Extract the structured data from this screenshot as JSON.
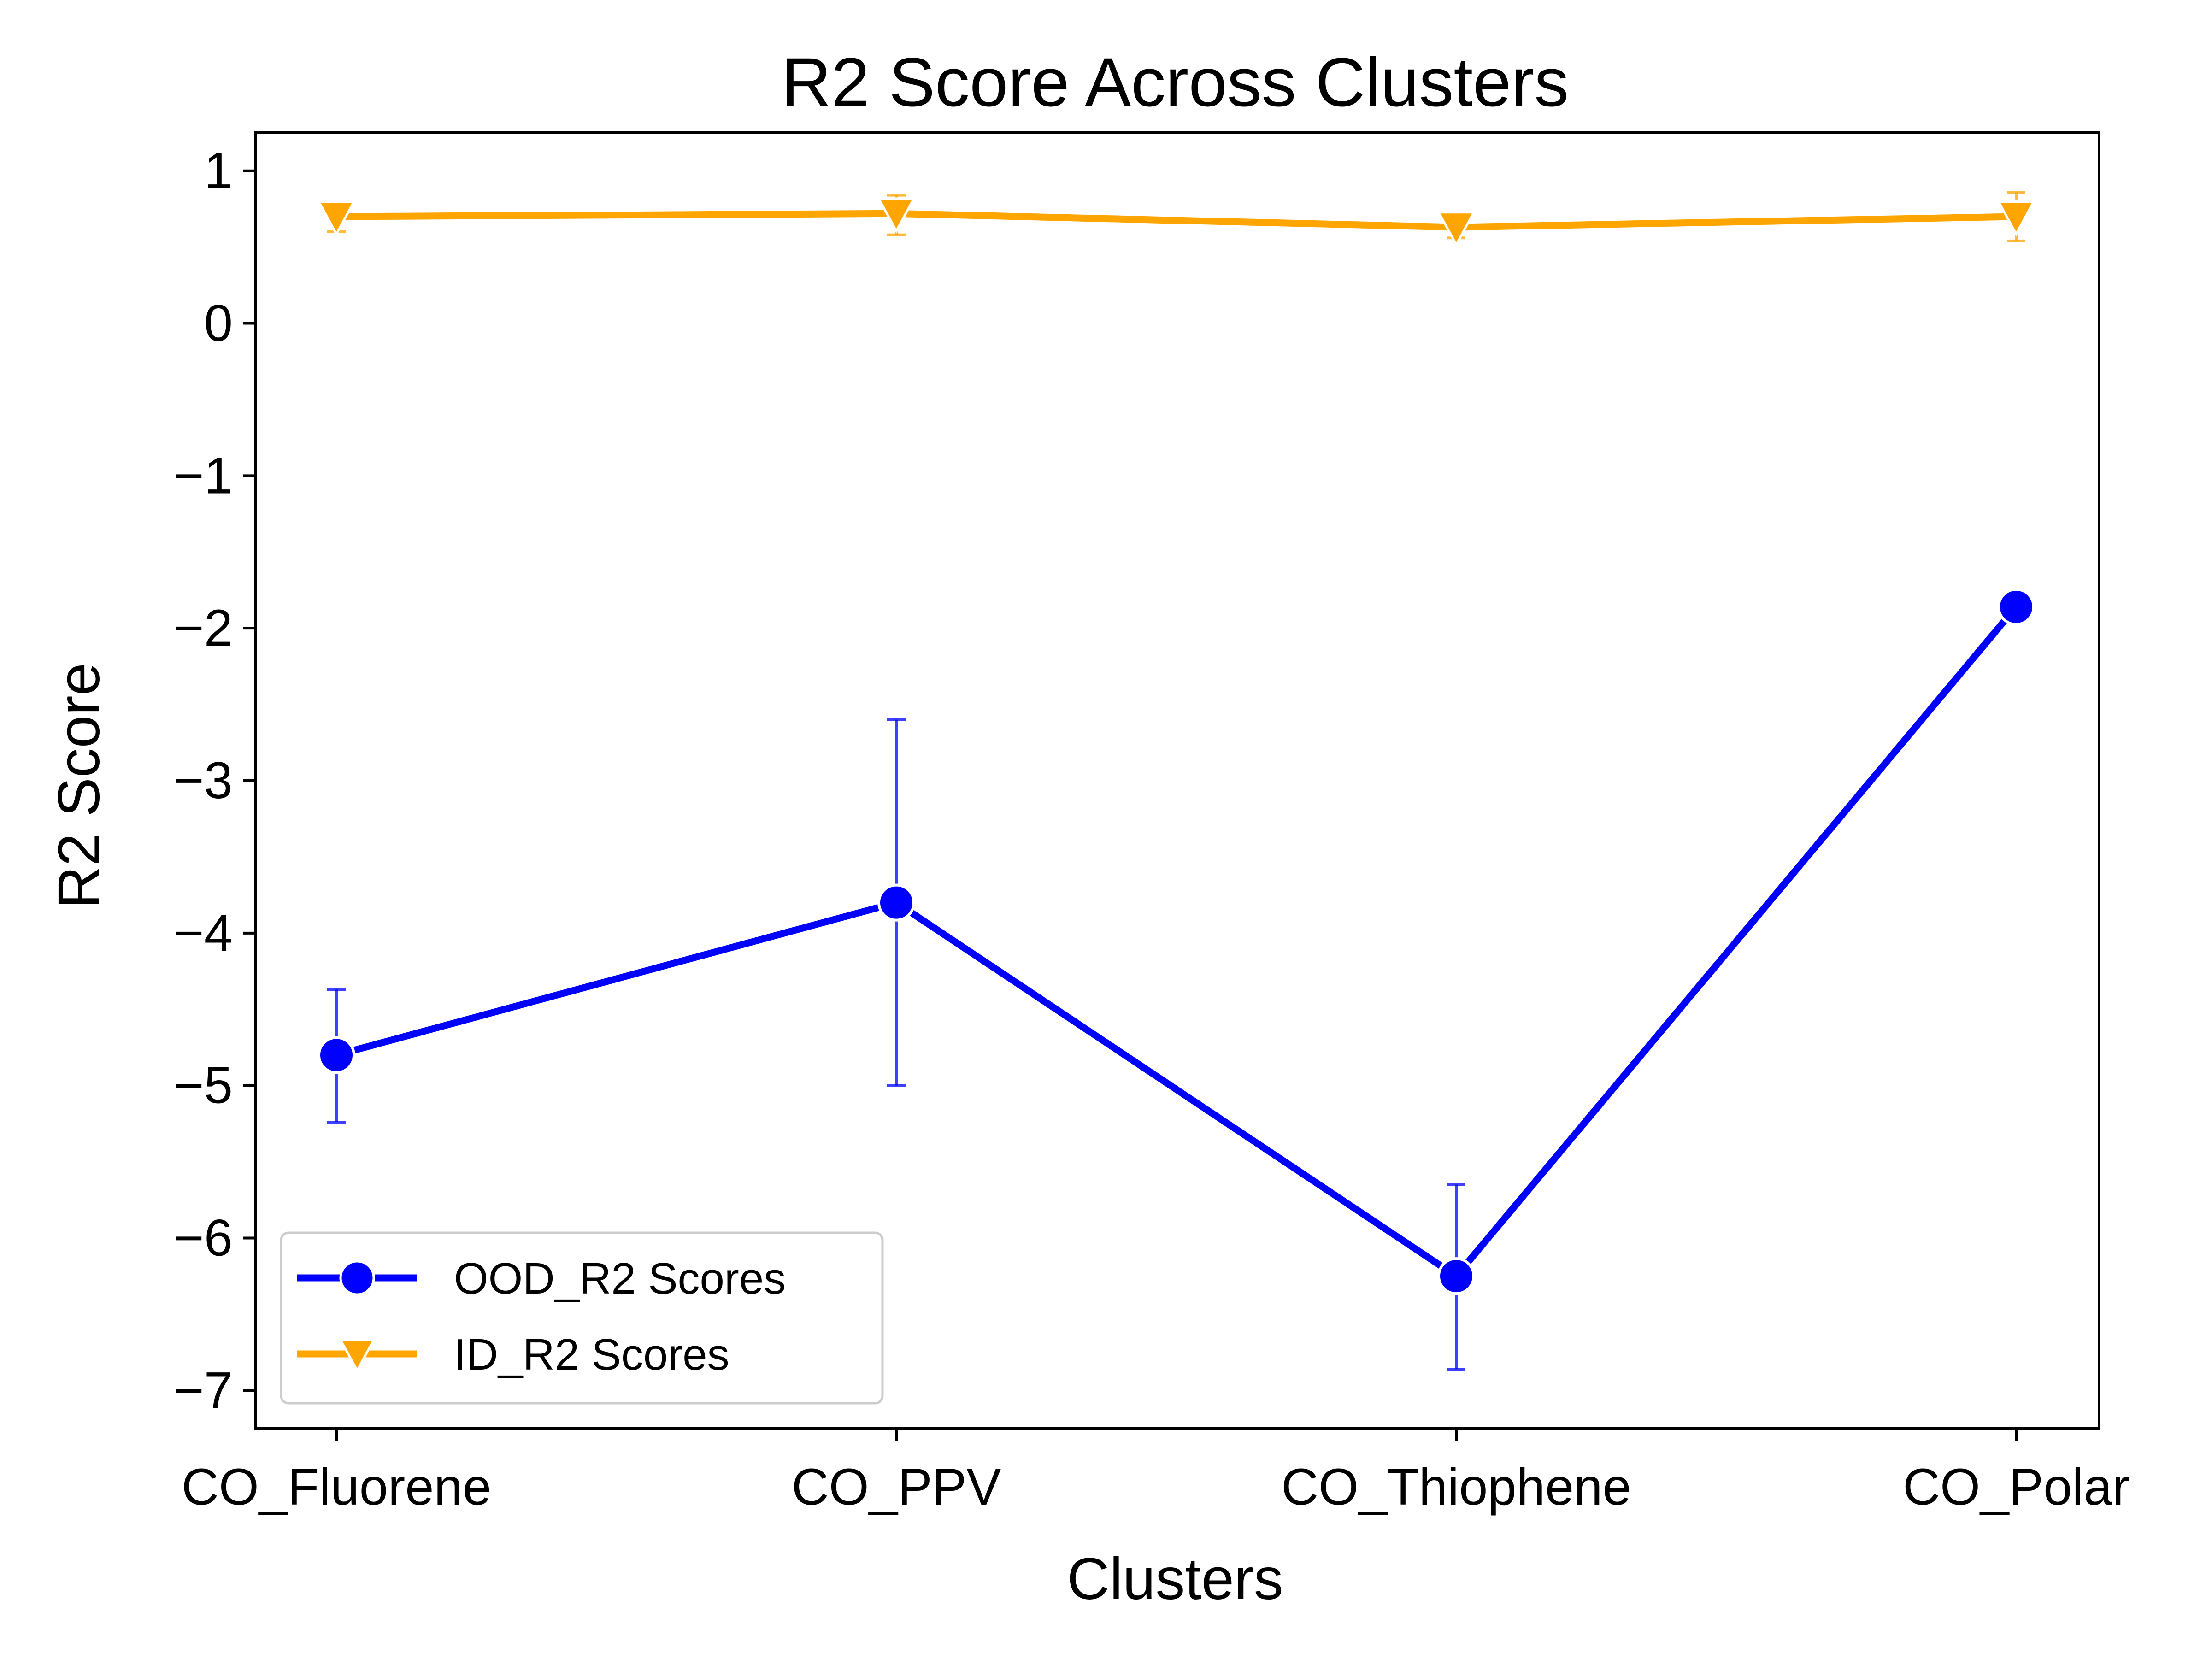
{
  "chart_data": {
    "type": "line",
    "title": "R2 Score Across Clusters",
    "xlabel": "Clusters",
    "ylabel": "R2 Score",
    "categories": [
      "CO_Fluorene",
      "CO_PPV",
      "CO_Thiophene",
      "CO_Polar"
    ],
    "ylim": [
      -7.25,
      1.25
    ],
    "yticks": [
      1,
      0,
      -1,
      -2,
      -3,
      -4,
      -5,
      -6,
      -7
    ],
    "ytick_labels": [
      "1",
      "0",
      "−1",
      "−2",
      "−3",
      "−4",
      "−5",
      "−6",
      "−7"
    ],
    "grid": false,
    "legend_position": "lower-left",
    "series": [
      {
        "name": "OOD_R2 Scores",
        "color": "#0000ff",
        "marker": "circle",
        "values": [
          -4.8,
          -3.8,
          -6.25,
          -1.86
        ],
        "err_low": [
          -5.24,
          -5.0,
          -6.86,
          -1.86
        ],
        "err_high": [
          -4.37,
          -2.6,
          -5.65,
          -1.86
        ]
      },
      {
        "name": "ID_R2 Scores",
        "color": "#ffa500",
        "marker": "triangle-down",
        "values": [
          0.7,
          0.72,
          0.63,
          0.7
        ],
        "err_low": [
          0.6,
          0.58,
          0.56,
          0.54
        ],
        "err_high": [
          0.79,
          0.84,
          0.69,
          0.86
        ]
      }
    ]
  }
}
